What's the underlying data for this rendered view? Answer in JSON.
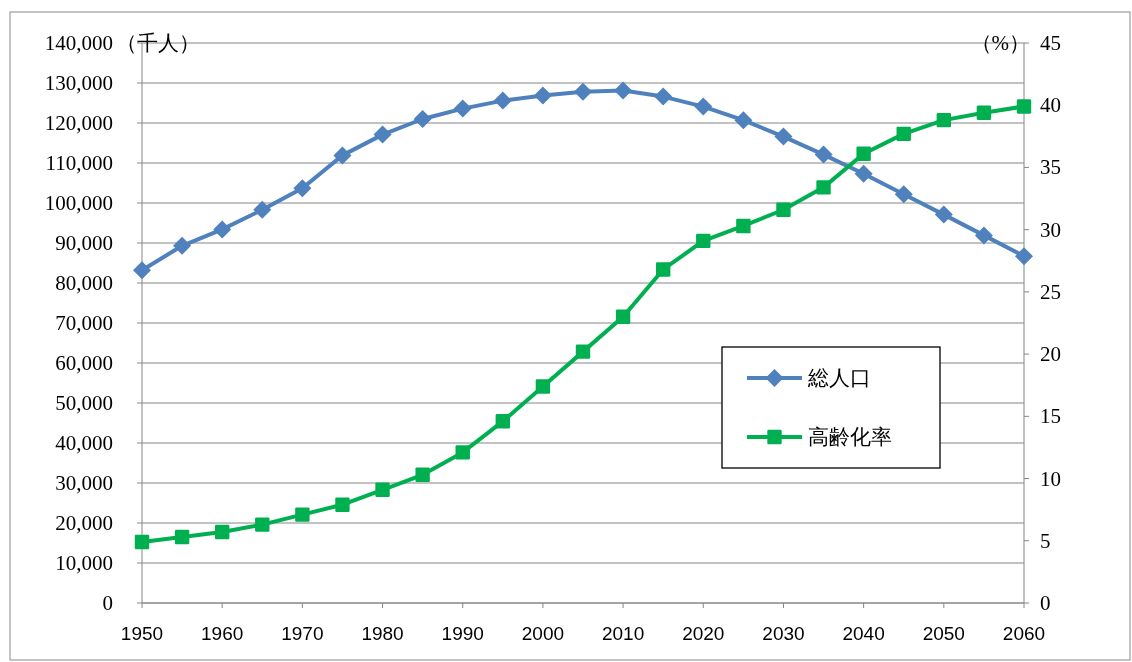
{
  "chart_data": {
    "type": "line",
    "ylabel": "（千人）",
    "y2label": "（%）",
    "x": [
      1950,
      1955,
      1960,
      1965,
      1970,
      1975,
      1980,
      1985,
      1990,
      1995,
      2000,
      2005,
      2010,
      2015,
      2020,
      2025,
      2030,
      2035,
      2040,
      2045,
      2050,
      2055,
      2060
    ],
    "series": [
      {
        "name": "総人口",
        "color": "#4f81bd",
        "marker": "diamond",
        "values": [
          83200,
          89300,
          93400,
          98300,
          103700,
          111900,
          117100,
          121000,
          123600,
          125600,
          126900,
          127800,
          128100,
          126600,
          124100,
          120700,
          116600,
          112100,
          107300,
          102200,
          97100,
          91900,
          86700
        ]
      },
      {
        "name": "高齢化率",
        "color": "#00b050",
        "marker": "square",
        "axis": "y2",
        "values": [
          4.9,
          5.3,
          5.7,
          6.3,
          7.1,
          7.9,
          9.1,
          10.3,
          12.1,
          14.6,
          17.4,
          20.2,
          23.0,
          26.8,
          29.1,
          30.3,
          31.6,
          33.4,
          36.1,
          37.7,
          38.8,
          39.4,
          39.9
        ]
      }
    ],
    "xlim": [
      1950,
      2060
    ],
    "xticks": [
      1950,
      1960,
      1970,
      1980,
      1990,
      2000,
      2010,
      2020,
      2030,
      2040,
      2050,
      2060
    ],
    "ylim": [
      0,
      140000
    ],
    "yticks": [
      0,
      {
        "value": 10000,
        "label": "10,000"
      },
      {
        "value": 20000,
        "label": "20,000"
      },
      {
        "value": 30000,
        "label": "30,000"
      },
      {
        "value": 40000,
        "label": "40,000"
      },
      {
        "value": 50000,
        "label": "50,000"
      },
      {
        "value": 60000,
        "label": "60,000"
      },
      {
        "value": 70000,
        "label": "70,000"
      },
      {
        "value": 80000,
        "label": "80,000"
      },
      {
        "value": 90000,
        "label": "90,000"
      },
      {
        "value": 100000,
        "label": "100,000"
      },
      {
        "value": 110000,
        "label": "110,000"
      },
      {
        "value": 120000,
        "label": "120,000"
      },
      {
        "value": 130000,
        "label": "130,000"
      },
      {
        "value": 140000,
        "label": "140,000"
      }
    ],
    "y2lim": [
      0,
      45
    ],
    "y2ticks": [
      0,
      5,
      10,
      15,
      20,
      25,
      30,
      35,
      40,
      45
    ],
    "grid": "y",
    "legend": "right"
  }
}
